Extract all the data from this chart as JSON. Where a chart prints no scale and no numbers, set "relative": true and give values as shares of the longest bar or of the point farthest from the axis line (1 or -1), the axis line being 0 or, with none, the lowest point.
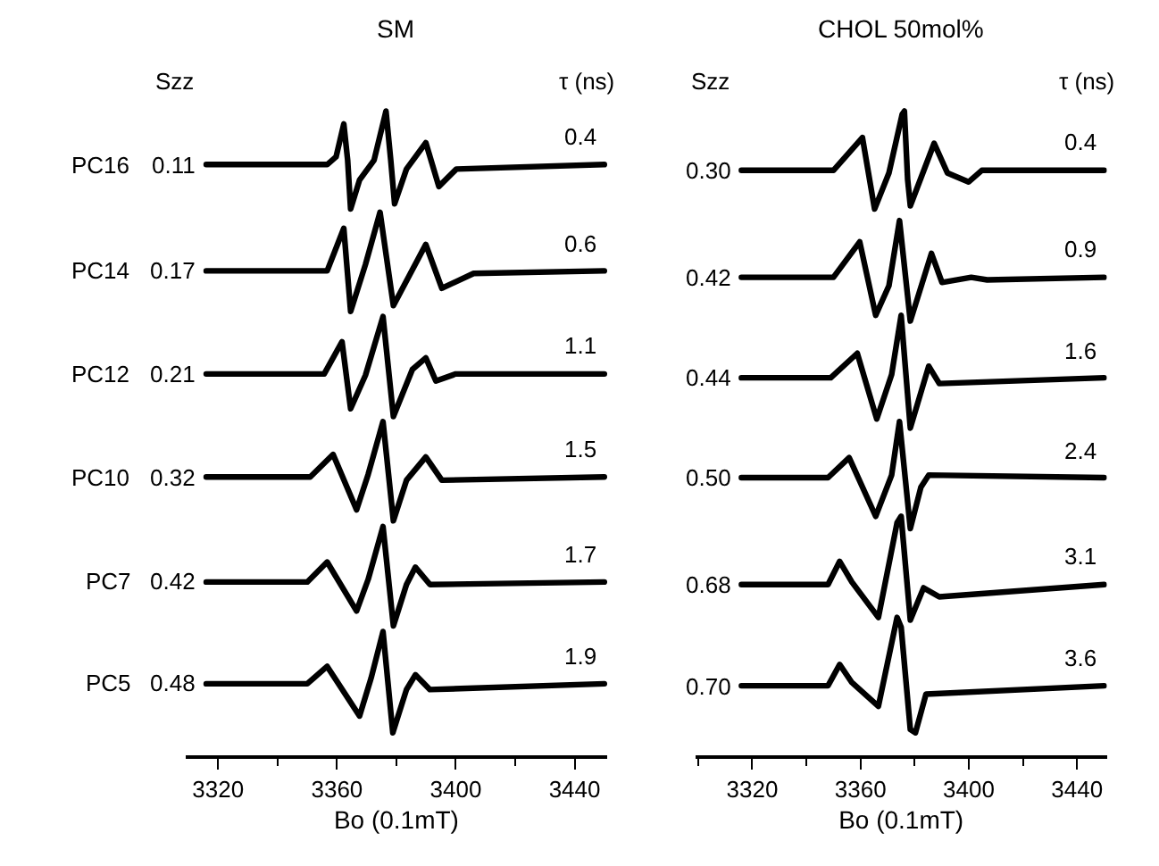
{
  "chart_data": [
    {
      "type": "line",
      "title": "SM",
      "xlabel": "Bo (0.1mT)",
      "relative": true,
      "xlim": [
        3309,
        3451
      ],
      "xticks": [
        3320,
        {
          "value": 3340,
          "label": null
        },
        3360,
        {
          "value": 3380,
          "label": null
        },
        3400,
        {
          "value": 3420,
          "label": null
        },
        3440
      ],
      "marker": "none",
      "line_style": "solid",
      "series": [
        {
          "color": "#000000",
          "x": [
            3316,
            3356.7,
            3359.7,
            3362.3,
            3363.6,
            3364.6,
            3367.6,
            3372.5,
            3376.5,
            3378.1,
            3379.4,
            3383.4,
            3389.9,
            3394.3,
            3400.2,
            3450
          ],
          "values": [
            0.917,
            0.917,
            0.929,
            0.98,
            0.924,
            0.848,
            0.893,
            0.924,
            1.0,
            0.924,
            0.856,
            0.91,
            0.951,
            0.883,
            0.91,
            0.917
          ]
        },
        {
          "color": "#000000",
          "x": [
            3316,
            3356.7,
            3362.3,
            3364.6,
            3369.6,
            3374.5,
            3379,
            3389.9,
            3395.3,
            3406,
            3450
          ],
          "values": [
            0.752,
            0.752,
            0.818,
            0.689,
            0.762,
            0.843,
            0.698,
            0.793,
            0.725,
            0.748,
            0.752
          ]
        },
        {
          "color": "#000000",
          "x": [
            3316,
            3355.7,
            3361.7,
            3364.6,
            3369.6,
            3375.5,
            3379,
            3385.4,
            3389.9,
            3393.3,
            3400,
            3450
          ],
          "values": [
            0.592,
            0.592,
            0.642,
            0.538,
            0.59,
            0.681,
            0.526,
            0.599,
            0.617,
            0.581,
            0.592,
            0.592
          ]
        },
        {
          "color": "#000000",
          "x": [
            3316,
            3351,
            3358.7,
            3366.6,
            3370.5,
            3375.5,
            3379,
            3383.4,
            3389.9,
            3395.3,
            3450
          ],
          "values": [
            0.432,
            0.432,
            0.467,
            0.381,
            0.436,
            0.518,
            0.364,
            0.427,
            0.463,
            0.427,
            0.432
          ]
        },
        {
          "color": "#000000",
          "x": [
            3316,
            3350,
            3356.7,
            3366.6,
            3370.5,
            3375.5,
            3379,
            3383.4,
            3386.4,
            3391.3,
            3450
          ],
          "values": [
            0.269,
            0.269,
            0.3,
            0.224,
            0.273,
            0.355,
            0.201,
            0.265,
            0.292,
            0.265,
            0.269
          ]
        },
        {
          "color": "#000000",
          "x": [
            3316,
            3350,
            3356.7,
            3367.6,
            3371.5,
            3375.5,
            3378.8,
            3383.4,
            3386.4,
            3391.3,
            3450
          ],
          "values": [
            0.111,
            0.111,
            0.138,
            0.061,
            0.12,
            0.192,
            0.035,
            0.102,
            0.125,
            0.102,
            0.111
          ]
        }
      ],
      "annotations": [
        "Szz",
        "τ (ns)",
        "PC16",
        "PC14",
        "PC12",
        "PC10",
        "PC7",
        "PC5",
        "0.11",
        "0.17",
        "0.21",
        "0.32",
        "0.42",
        "0.48",
        "0.4",
        "0.6",
        "1.1",
        "1.5",
        "1.7",
        "1.9"
      ]
    },
    {
      "type": "line",
      "title": "CHOL 50mol%",
      "xlabel": "Bo (0.1mT)",
      "relative": true,
      "xlim": [
        3299,
        3451
      ],
      "xticks": [
        {
          "value": 3300,
          "label": null
        },
        3320,
        {
          "value": 3340,
          "label": null
        },
        3360,
        {
          "value": 3380,
          "label": null
        },
        3400,
        {
          "value": 3420,
          "label": null
        },
        3440
      ],
      "marker": "none",
      "line_style": "solid",
      "series": [
        {
          "color": "#000000",
          "x": [
            3316,
            3350,
            3360.7,
            3365.2,
            3370.5,
            3375.4,
            3376.2,
            3377.4,
            3378.4,
            3387.2,
            3392.1,
            3399.9,
            3404.8,
            3450
          ],
          "values": [
            0.908,
            0.908,
            0.959,
            0.848,
            0.904,
            0.995,
            1.0,
            0.894,
            0.853,
            0.95,
            0.904,
            0.89,
            0.908,
            0.908
          ]
        },
        {
          "color": "#000000",
          "x": [
            3316,
            3350,
            3359.7,
            3365.6,
            3370.5,
            3374.4,
            3378.4,
            3386.2,
            3390.1,
            3400.9,
            3406.8,
            3450
          ],
          "values": [
            0.742,
            0.742,
            0.797,
            0.683,
            0.729,
            0.83,
            0.674,
            0.779,
            0.734,
            0.742,
            0.738,
            0.742
          ]
        },
        {
          "color": "#000000",
          "x": [
            3316,
            3349,
            3358.8,
            3366,
            3371.5,
            3375,
            3378.4,
            3385.2,
            3389.1,
            3450
          ],
          "values": [
            0.586,
            0.586,
            0.624,
            0.522,
            0.591,
            0.683,
            0.508,
            0.604,
            0.577,
            0.586
          ]
        },
        {
          "color": "#000000",
          "x": [
            3316,
            3348,
            3355.8,
            3365.6,
            3371.5,
            3374.4,
            3378.4,
            3382.3,
            3385.2,
            3450
          ],
          "values": [
            0.431,
            0.431,
            0.462,
            0.371,
            0.435,
            0.518,
            0.352,
            0.416,
            0.435,
            0.431
          ]
        },
        {
          "color": "#000000",
          "x": [
            3316,
            3348,
            3352.3,
            3356.8,
            3366.6,
            3373.5,
            3375,
            3378.4,
            3383.3,
            3389.1,
            3450
          ],
          "values": [
            0.265,
            0.265,
            0.301,
            0.269,
            0.214,
            0.361,
            0.371,
            0.21,
            0.26,
            0.246,
            0.265
          ]
        },
        {
          "color": "#000000",
          "x": [
            3316,
            3348,
            3352.3,
            3356.8,
            3366.6,
            3373.5,
            3375,
            3378.4,
            3380.3,
            3384.2,
            3450
          ],
          "values": [
            0.108,
            0.108,
            0.141,
            0.113,
            0.076,
            0.214,
            0.199,
            0.04,
            0.035,
            0.095,
            0.108
          ]
        }
      ],
      "annotations": [
        "Szz",
        "τ (ns)",
        "0.30",
        "0.42",
        "0.44",
        "0.50",
        "0.68",
        "0.70",
        "0.4",
        "0.9",
        "1.6",
        "2.4",
        "3.1",
        "3.6"
      ]
    }
  ]
}
